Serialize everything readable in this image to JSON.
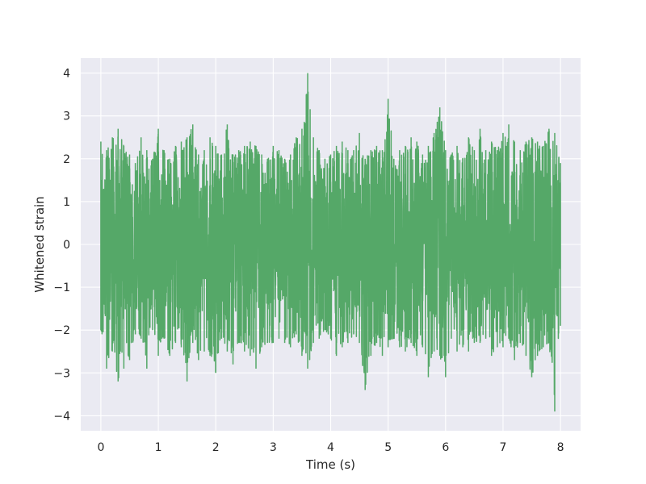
{
  "chart_data": {
    "type": "line",
    "title": "",
    "xlabel": "Time (s)",
    "ylabel": "Whitened strain",
    "xlim": [
      -0.35,
      8.35
    ],
    "ylim": [
      -4.35,
      4.35
    ],
    "xticks": [
      0,
      1,
      2,
      3,
      4,
      5,
      6,
      7,
      8
    ],
    "yticks": [
      -4,
      -3,
      -2,
      -1,
      0,
      1,
      2,
      3,
      4
    ],
    "xtick_labels": [
      "0",
      "1",
      "2",
      "3",
      "4",
      "5",
      "6",
      "7",
      "8"
    ],
    "ytick_labels": [
      "−4",
      "−3",
      "−2",
      "−1",
      "0",
      "1",
      "2",
      "3",
      "4"
    ],
    "grid": true,
    "legend": "none",
    "background_color": "#eaeaf2",
    "grid_color": "#ffffff",
    "series": [
      {
        "color": "#55a868",
        "x": [
          0.0,
          0.1,
          0.2,
          0.3,
          0.4,
          0.5,
          0.6,
          0.7,
          0.8,
          0.9,
          1.0,
          1.1,
          1.2,
          1.3,
          1.4,
          1.5,
          1.6,
          1.7,
          1.8,
          1.9,
          2.0,
          2.1,
          2.2,
          2.3,
          2.4,
          2.5,
          2.6,
          2.7,
          2.8,
          2.9,
          3.0,
          3.1,
          3.2,
          3.3,
          3.4,
          3.5,
          3.6,
          3.7,
          3.8,
          3.9,
          4.0,
          4.1,
          4.2,
          4.3,
          4.4,
          4.5,
          4.6,
          4.7,
          4.8,
          4.9,
          5.0,
          5.1,
          5.2,
          5.3,
          5.4,
          5.5,
          5.6,
          5.7,
          5.8,
          5.9,
          6.0,
          6.1,
          6.2,
          6.3,
          6.4,
          6.5,
          6.6,
          6.7,
          6.8,
          6.9,
          7.0,
          7.1,
          7.2,
          7.3,
          7.4,
          7.5,
          7.6,
          7.7,
          7.8,
          7.9,
          8.0
        ],
        "y_max": [
          2.4,
          2.2,
          2.5,
          2.7,
          2.3,
          2.1,
          1.9,
          2.5,
          2.2,
          2.0,
          2.7,
          2.2,
          2.0,
          2.3,
          2.4,
          2.5,
          2.8,
          2.1,
          2.2,
          2.5,
          2.3,
          2.1,
          2.8,
          2.1,
          2.2,
          2.3,
          2.4,
          2.3,
          2.1,
          2.0,
          2.3,
          2.2,
          2.0,
          2.1,
          2.5,
          2.7,
          4.0,
          2.5,
          2.2,
          2.0,
          2.1,
          2.3,
          2.4,
          2.2,
          2.2,
          2.6,
          2.0,
          2.2,
          2.3,
          2.2,
          3.4,
          2.0,
          2.2,
          2.3,
          2.5,
          2.4,
          2.1,
          2.3,
          2.6,
          3.2,
          2.2,
          2.1,
          2.3,
          2.0,
          2.5,
          2.2,
          2.7,
          2.2,
          2.4,
          2.2,
          2.6,
          2.8,
          2.4,
          2.2,
          2.4,
          2.5,
          2.4,
          2.3,
          2.7,
          2.6,
          1.9
        ],
        "y_min": [
          -2.0,
          -2.9,
          -2.5,
          -3.2,
          -2.9,
          -2.7,
          -2.1,
          -2.2,
          -2.9,
          -2.0,
          -2.6,
          -2.2,
          -2.6,
          -2.3,
          -2.4,
          -3.2,
          -2.3,
          -2.7,
          -2.5,
          -2.6,
          -3.0,
          -2.2,
          -2.5,
          -2.8,
          -2.3,
          -2.5,
          -2.6,
          -2.9,
          -2.4,
          -2.3,
          -2.3,
          -2.2,
          -2.3,
          -2.4,
          -2.1,
          -2.6,
          -2.9,
          -2.3,
          -2.2,
          -2.0,
          -2.2,
          -2.6,
          -2.4,
          -2.3,
          -2.1,
          -2.3,
          -3.4,
          -2.6,
          -2.3,
          -2.6,
          -2.4,
          -2.2,
          -2.4,
          -2.5,
          -2.3,
          -2.6,
          -2.4,
          -3.1,
          -2.5,
          -2.6,
          -3.1,
          -2.2,
          -2.5,
          -2.4,
          -2.5,
          -2.3,
          -2.3,
          -2.2,
          -2.6,
          -2.4,
          -2.4,
          -2.2,
          -2.7,
          -2.3,
          -2.6,
          -3.1,
          -2.6,
          -2.4,
          -2.3,
          -3.9,
          -1.9
        ]
      }
    ]
  }
}
